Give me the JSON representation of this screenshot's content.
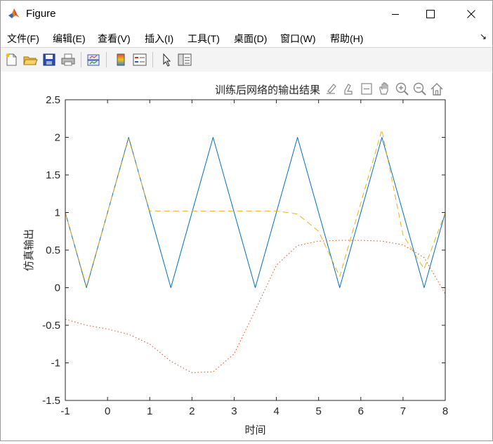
{
  "window": {
    "title": "Figure",
    "app_icon": "matlab-logo-icon",
    "controls": [
      "minimize-icon",
      "maximize-icon",
      "close-icon"
    ]
  },
  "menubar": {
    "items": [
      {
        "label": "文件(F)"
      },
      {
        "label": "编辑(E)"
      },
      {
        "label": "查看(V)"
      },
      {
        "label": "插入(I)"
      },
      {
        "label": "工具(T)"
      },
      {
        "label": "桌面(D)"
      },
      {
        "label": "窗口(W)"
      },
      {
        "label": "帮助(H)"
      }
    ],
    "dock_icon": "dock-arrow-icon"
  },
  "toolbar": {
    "icons": [
      "new-figure-icon",
      "open-icon",
      "save-icon",
      "print-icon",
      "link-plot-icon",
      "colorbar-icon",
      "legend-icon",
      "edit-plot-icon",
      "property-inspector-icon"
    ]
  },
  "axes_toolbar": {
    "icons": [
      "brush-data-icon",
      "data-tips-icon",
      "restore-view-icon",
      "pan-icon",
      "zoom-in-icon",
      "zoom-out-icon",
      "home-icon"
    ]
  },
  "chart_data": {
    "type": "line",
    "title": "训练后网络的输出结果",
    "xlabel": "时间",
    "ylabel": "仿真输出",
    "xlim": [
      -1,
      8
    ],
    "ylim": [
      -1.5,
      2.5
    ],
    "xticks": [
      -1,
      0,
      1,
      2,
      3,
      4,
      5,
      6,
      7,
      8
    ],
    "yticks": [
      -1.5,
      -1,
      -0.5,
      0,
      0.5,
      1,
      1.5,
      2,
      2.5
    ],
    "grid": false,
    "legend": "none",
    "series": [
      {
        "style": "solid",
        "color": "#0072BD",
        "x": [
          -1,
          -0.5,
          0.5,
          1.5,
          2.5,
          3.5,
          4.5,
          5.5,
          6.5,
          7.5,
          8
        ],
        "y": [
          1,
          0,
          2,
          0,
          2,
          0,
          2,
          0,
          2,
          0,
          1
        ]
      },
      {
        "style": "dashed",
        "color": "#EDB120",
        "x": [
          -1,
          -0.5,
          0.5,
          1,
          2,
          3,
          4,
          4.5,
          5,
          5.5,
          6.5,
          7,
          7.5,
          8
        ],
        "y": [
          1,
          0.02,
          1.98,
          1.02,
          1.02,
          1.02,
          1.02,
          0.98,
          0.75,
          0.15,
          2.1,
          0.7,
          0.25,
          1
        ]
      },
      {
        "style": "dotted",
        "color": "#D95319",
        "x": [
          -1,
          -0.5,
          0,
          0.5,
          1,
          1.5,
          2,
          2.5,
          3,
          3.5,
          4,
          4.5,
          5,
          5.5,
          6,
          6.5,
          7,
          7.5,
          8
        ],
        "y": [
          -0.42,
          -0.5,
          -0.55,
          -0.62,
          -0.75,
          -0.98,
          -1.13,
          -1.12,
          -0.88,
          -0.3,
          0.3,
          0.56,
          0.62,
          0.63,
          0.63,
          0.62,
          0.57,
          0.4,
          -0.08
        ]
      }
    ]
  }
}
